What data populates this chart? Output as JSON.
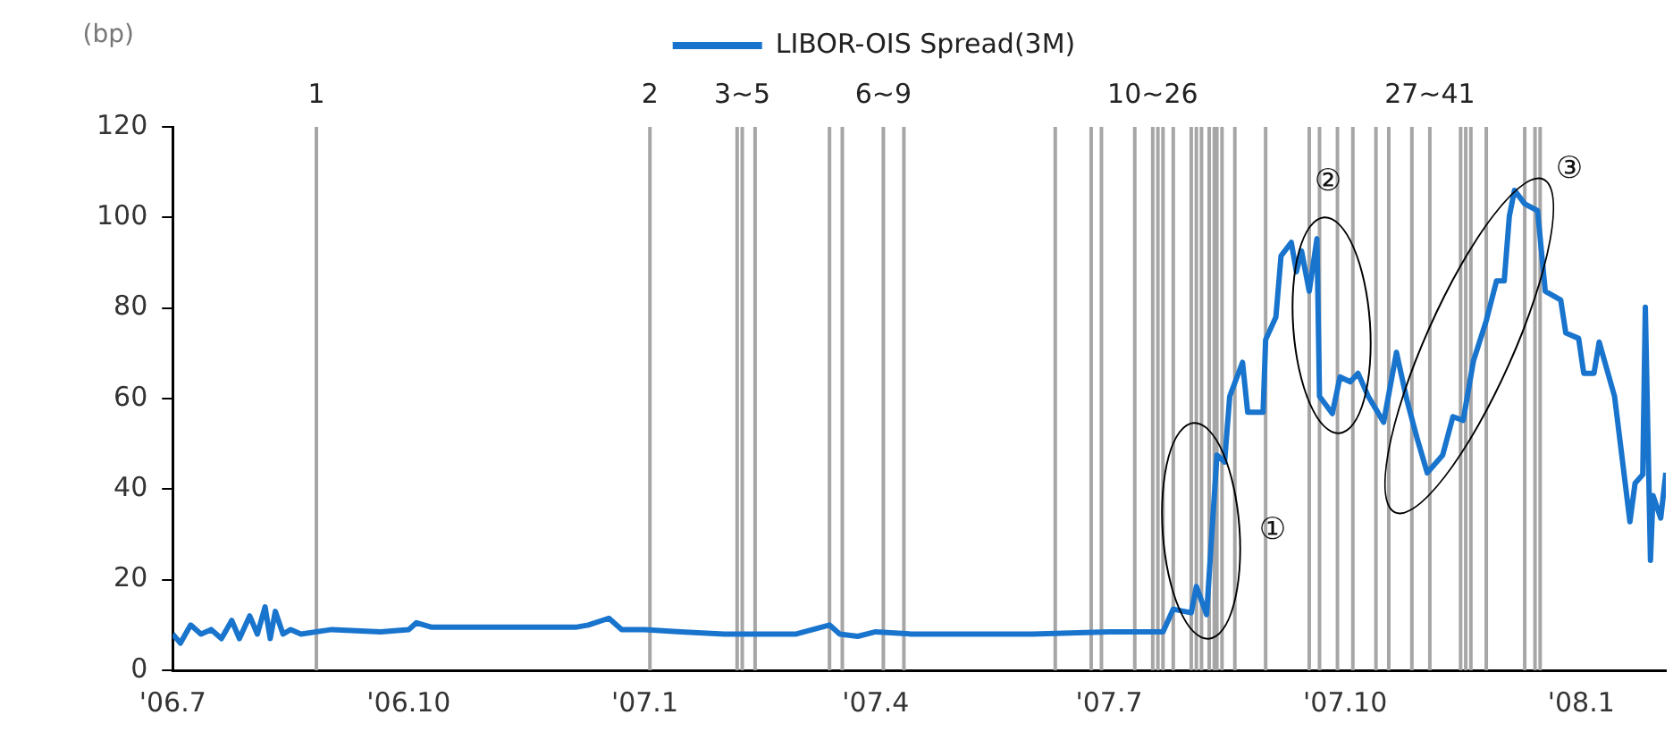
{
  "chart_data": {
    "type": "line",
    "ylabel": "(bp)",
    "legend": "top",
    "x": [
      "2006-07-01",
      "2006-07-04",
      "2006-07-08",
      "2006-07-12",
      "2006-07-16",
      "2006-07-20",
      "2006-07-24",
      "2006-07-27",
      "2006-07-31",
      "2006-08-03",
      "2006-08-06",
      "2006-08-08",
      "2006-08-10",
      "2006-08-13",
      "2006-08-16",
      "2006-08-20",
      "2006-09-01",
      "2006-09-20",
      "2006-10-01",
      "2006-10-04",
      "2006-10-10",
      "2006-11-01",
      "2006-11-20",
      "2006-12-05",
      "2006-12-10",
      "2006-12-18",
      "2006-12-23",
      "2007-01-01",
      "2007-01-15",
      "2007-02-01",
      "2007-03-01",
      "2007-03-14",
      "2007-03-18",
      "2007-03-25",
      "2007-04-01",
      "2007-04-15",
      "2007-05-01",
      "2007-06-01",
      "2007-07-01",
      "2007-07-22",
      "2007-07-26",
      "2007-08-02",
      "2007-08-04",
      "2007-08-08",
      "2007-08-12",
      "2007-08-15",
      "2007-08-17",
      "2007-08-22",
      "2007-08-24",
      "2007-08-30",
      "2007-08-31",
      "2007-09-04",
      "2007-09-06",
      "2007-09-10",
      "2007-09-12",
      "2007-09-14",
      "2007-09-17",
      "2007-09-20",
      "2007-09-21",
      "2007-09-26",
      "2007-09-29",
      "2007-10-03",
      "2007-10-06",
      "2007-10-10",
      "2007-10-16",
      "2007-10-21",
      "2007-10-25",
      "2007-10-29",
      "2007-11-02",
      "2007-11-08",
      "2007-11-12",
      "2007-11-16",
      "2007-11-20",
      "2007-11-25",
      "2007-11-29",
      "2007-12-02",
      "2007-12-04",
      "2007-12-06",
      "2007-12-10",
      "2007-12-15",
      "2007-12-18",
      "2007-12-24",
      "2007-12-26",
      "2007-12-31",
      "2008-01-02",
      "2008-01-06",
      "2008-01-08",
      "2008-01-14",
      "2008-01-16",
      "2008-01-20",
      "2008-01-22",
      "2008-01-25",
      "2008-01-26",
      "2008-01-28",
      "2008-01-29",
      "2008-02-01",
      "2008-02-03"
    ],
    "series": [
      {
        "name": "LIBOR-OIS Spread(3M)",
        "color": "#1874cd",
        "values": [
          8,
          6,
          10,
          8,
          9,
          7,
          11,
          7,
          12,
          8,
          14,
          7,
          13,
          8,
          9,
          8,
          9,
          8.5,
          9,
          10.5,
          9.5,
          9.5,
          9.5,
          9.5,
          10,
          11.5,
          9,
          9,
          8.5,
          8,
          8,
          10,
          8,
          7.5,
          8.5,
          8,
          8,
          8,
          8.5,
          8.5,
          13.5,
          12.7,
          18.5,
          12.3,
          47.5,
          46,
          60.5,
          68,
          57,
          57,
          73,
          78,
          91.5,
          94.5,
          88,
          92.6,
          83.7,
          95.3,
          60.5,
          56.7,
          64.8,
          63.7,
          65.6,
          60.5,
          54.8,
          70.2,
          59.8,
          51.3,
          43.6,
          47.5,
          56,
          55.2,
          68.3,
          77.2,
          86,
          86,
          100.3,
          106,
          103,
          101.5,
          83.7,
          81.8,
          74.5,
          73.3,
          65.6,
          65.6,
          72.5,
          60.5,
          51.3,
          32.8,
          41.3,
          43.2,
          80.2,
          24.3,
          38.6,
          33.6,
          43.6
        ]
      }
    ],
    "xlim": [
      "2006-07-01",
      "2008-02-03"
    ],
    "xticks": [
      {
        "value": "2006-07-01",
        "label": "'06.7"
      },
      {
        "value": "2006-10-01",
        "label": "'06.10"
      },
      {
        "value": "2007-01-01",
        "label": "'07.1"
      },
      {
        "value": "2007-04-01",
        "label": "'07.4"
      },
      {
        "value": "2007-07-01",
        "label": "'07.7"
      },
      {
        "value": "2007-10-01",
        "label": "'07.10"
      },
      {
        "value": "2008-01-01",
        "label": "'08.1"
      }
    ],
    "ylim": [
      0,
      120
    ],
    "yticks": [
      0,
      20,
      40,
      60,
      80,
      100,
      120
    ],
    "grid": false,
    "marker": "none",
    "line_style": "solid",
    "ref_lines": [
      {
        "axis": "x",
        "value": "2006-08-26",
        "label": "1",
        "color": "#a6a6a6"
      },
      {
        "axis": "x",
        "value": "2007-01-03",
        "label": "2",
        "color": "#a6a6a6"
      },
      {
        "axis": "x",
        "value": "2007-02-06",
        "label": null,
        "color": "#a6a6a6"
      },
      {
        "axis": "x",
        "value": "2007-02-08",
        "label": "3~5",
        "color": "#a6a6a6"
      },
      {
        "axis": "x",
        "value": "2007-02-13",
        "label": null,
        "color": "#a6a6a6"
      },
      {
        "axis": "x",
        "value": "2007-03-14",
        "label": null,
        "color": "#a6a6a6"
      },
      {
        "axis": "x",
        "value": "2007-03-19",
        "label": null,
        "color": "#a6a6a6"
      },
      {
        "axis": "x",
        "value": "2007-04-04",
        "label": "6~9",
        "color": "#a6a6a6"
      },
      {
        "axis": "x",
        "value": "2007-04-12",
        "label": null,
        "color": "#a6a6a6"
      },
      {
        "axis": "x",
        "value": "2007-06-10",
        "label": null,
        "color": "#a6a6a6"
      },
      {
        "axis": "x",
        "value": "2007-06-24",
        "label": null,
        "color": "#a6a6a6"
      },
      {
        "axis": "x",
        "value": "2007-06-28",
        "label": null,
        "color": "#a6a6a6"
      },
      {
        "axis": "x",
        "value": "2007-07-11",
        "label": null,
        "color": "#a6a6a6"
      },
      {
        "axis": "x",
        "value": "2007-07-18",
        "label": "10~26",
        "color": "#a6a6a6"
      },
      {
        "axis": "x",
        "value": "2007-07-20",
        "label": null,
        "color": "#a6a6a6"
      },
      {
        "axis": "x",
        "value": "2007-07-22",
        "label": null,
        "color": "#a6a6a6"
      },
      {
        "axis": "x",
        "value": "2007-07-26",
        "label": null,
        "color": "#a6a6a6"
      },
      {
        "axis": "x",
        "value": "2007-08-02",
        "label": null,
        "color": "#a6a6a6"
      },
      {
        "axis": "x",
        "value": "2007-08-04",
        "label": null,
        "color": "#a6a6a6"
      },
      {
        "axis": "x",
        "value": "2007-08-06",
        "label": null,
        "color": "#a6a6a6"
      },
      {
        "axis": "x",
        "value": "2007-08-09",
        "label": null,
        "color": "#a6a6a6"
      },
      {
        "axis": "x",
        "value": "2007-08-11",
        "label": null,
        "color": "#a6a6a6"
      },
      {
        "axis": "x",
        "value": "2007-08-12",
        "label": null,
        "color": "#a6a6a6"
      },
      {
        "axis": "x",
        "value": "2007-08-14",
        "label": null,
        "color": "#a6a6a6"
      },
      {
        "axis": "x",
        "value": "2007-08-19",
        "label": null,
        "color": "#a6a6a6"
      },
      {
        "axis": "x",
        "value": "2007-08-31",
        "label": null,
        "color": "#a6a6a6"
      },
      {
        "axis": "x",
        "value": "2007-09-17",
        "label": null,
        "color": "#a6a6a6"
      },
      {
        "axis": "x",
        "value": "2007-09-21",
        "label": null,
        "color": "#a6a6a6"
      },
      {
        "axis": "x",
        "value": "2007-09-28",
        "label": null,
        "color": "#a6a6a6"
      },
      {
        "axis": "x",
        "value": "2007-10-04",
        "label": null,
        "color": "#a6a6a6"
      },
      {
        "axis": "x",
        "value": "2007-10-13",
        "label": null,
        "color": "#a6a6a6"
      },
      {
        "axis": "x",
        "value": "2007-10-18",
        "label": null,
        "color": "#a6a6a6"
      },
      {
        "axis": "x",
        "value": "2007-10-27",
        "label": null,
        "color": "#a6a6a6"
      },
      {
        "axis": "x",
        "value": "2007-11-03",
        "label": "27~41",
        "color": "#a6a6a6"
      },
      {
        "axis": "x",
        "value": "2007-11-15",
        "label": null,
        "color": "#a6a6a6"
      },
      {
        "axis": "x",
        "value": "2007-11-17",
        "label": null,
        "color": "#a6a6a6"
      },
      {
        "axis": "x",
        "value": "2007-11-19",
        "label": null,
        "color": "#a6a6a6"
      },
      {
        "axis": "x",
        "value": "2007-11-25",
        "label": null,
        "color": "#a6a6a6"
      },
      {
        "axis": "x",
        "value": "2007-12-10",
        "label": null,
        "color": "#a6a6a6"
      },
      {
        "axis": "x",
        "value": "2007-12-14",
        "label": null,
        "color": "#a6a6a6"
      },
      {
        "axis": "x",
        "value": "2007-12-16",
        "label": null,
        "color": "#a6a6a6"
      }
    ],
    "annotations": [
      "①",
      "②",
      "③"
    ]
  }
}
